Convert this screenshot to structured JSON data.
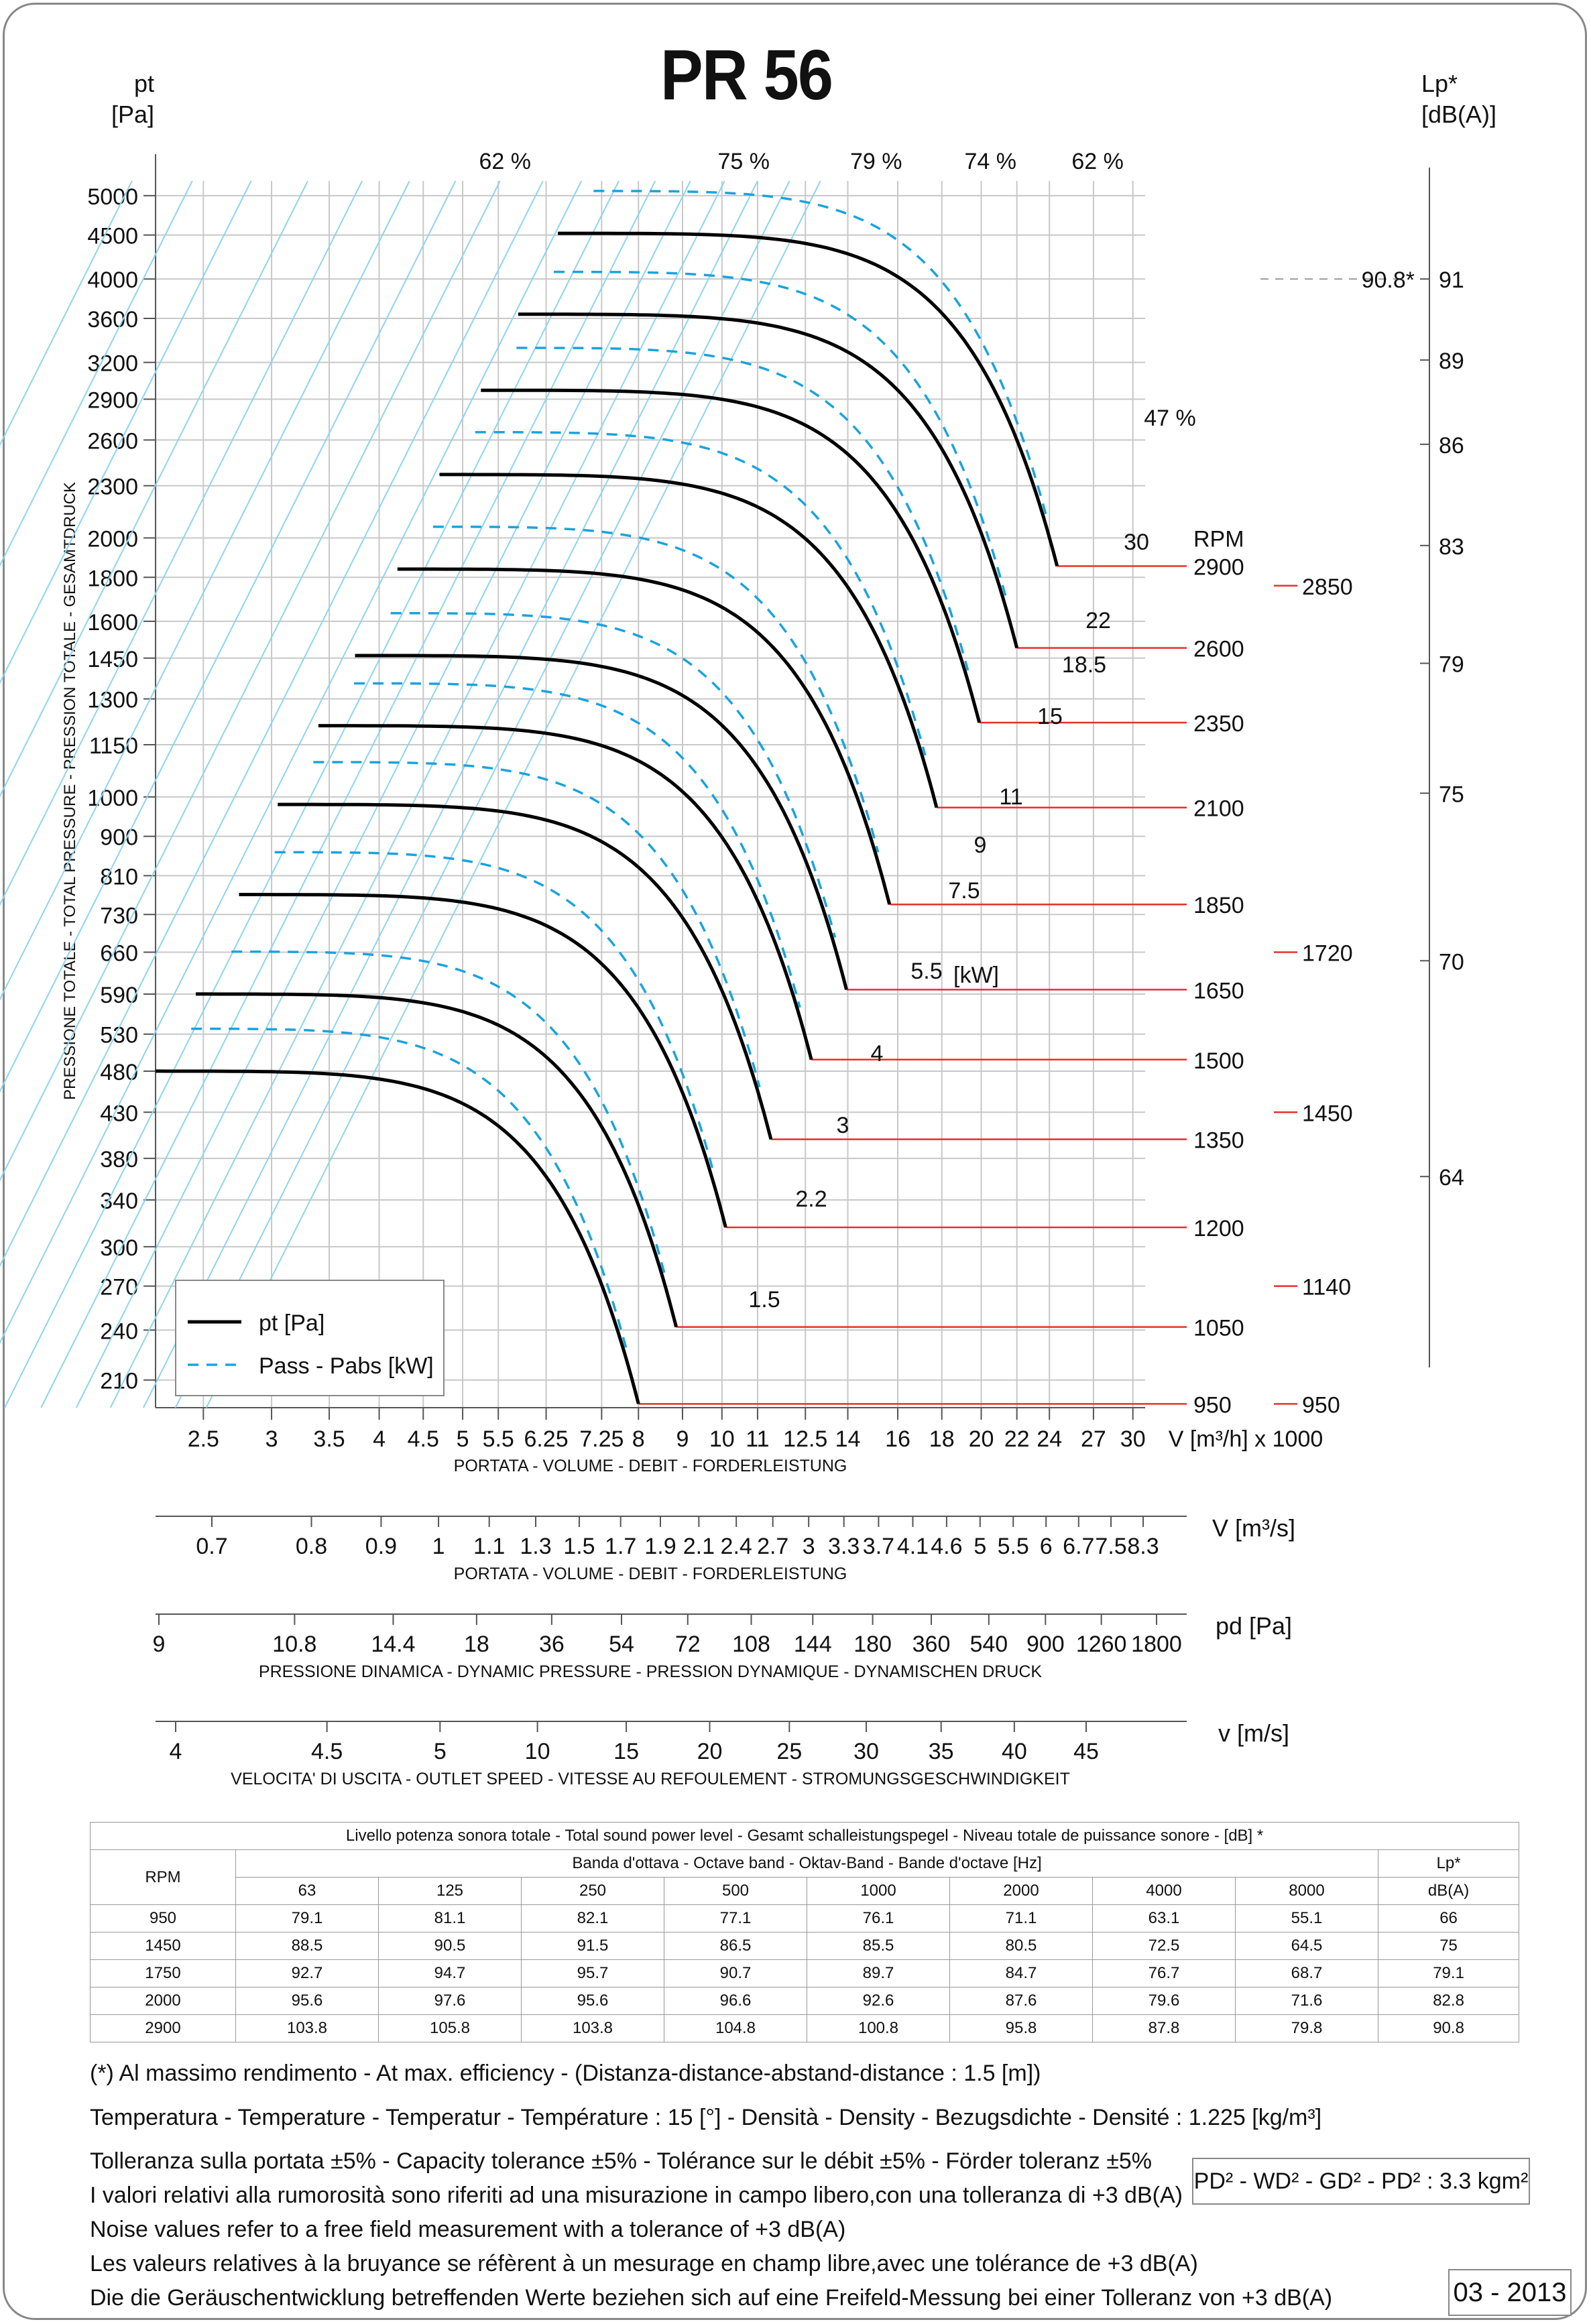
{
  "title": "PR 56",
  "axes": {
    "y_left_label": "pt",
    "y_left_unit": "[Pa]",
    "y_left_side": "PRESSIONE TOTALE - TOTAL PRESSURE - PRESSION TOTALE - GESAMTDRUCK",
    "y_right_label": "Lp*",
    "y_right_unit": "[dB(A)]",
    "x_unit": "V [m³/h]  x 1000",
    "x_caption": "PORTATA - VOLUME - DEBIT - FORDERLEISTUNG",
    "x2_unit": "V  [m³/s]",
    "x2_caption": "PORTATA - VOLUME - DEBIT - FORDERLEISTUNG",
    "x3_unit": "pd  [Pa]",
    "x3_caption": "PRESSIONE DINAMICA - DYNAMIC PRESSURE - PRESSION DYNAMIQUE - DYNAMISCHEN DRUCK",
    "x4_unit": "v  [m/s]",
    "x4_caption": "VELOCITA' DI USCITA - OUTLET SPEED - VITESSE AU REFOULEMENT - STROMUNGSGESCHWINDIGKEIT"
  },
  "legend": {
    "pt": "pt [Pa]",
    "pass": "Pass - Pabs [kW]"
  },
  "rpm_header": "RPM",
  "kw_unit": "[kW]",
  "lp_marker": "90.8*",
  "colors": {
    "curve": "#000000",
    "power": "#1aa3dd",
    "rpm": "#e8302a",
    "grid": "#c8c8c8",
    "system": "#8fd3f0"
  },
  "chart_data": {
    "type": "line",
    "title": "PR 56",
    "xscale": "log",
    "yscale": "log",
    "xlim": [
      2.2,
      31
    ],
    "ylim": [
      195,
      5200
    ],
    "y_ticks": [
      5000,
      4500,
      4000,
      3600,
      3200,
      2900,
      2600,
      2300,
      2000,
      1800,
      1600,
      1450,
      1300,
      1150,
      1000,
      900,
      810,
      730,
      660,
      590,
      530,
      480,
      430,
      380,
      340,
      300,
      270,
      240,
      210
    ],
    "x_ticks": [
      "2.5",
      "3",
      "3.5",
      "4",
      "4.5",
      "5",
      "5.5",
      "6.25",
      "7.25",
      "8",
      "9",
      "10",
      "11",
      "12.5",
      "14",
      "16",
      "18",
      "20",
      "22",
      "24",
      "27",
      "30"
    ],
    "x_tick_values": [
      2.5,
      3,
      3.5,
      4,
      4.5,
      5,
      5.5,
      6.25,
      7.25,
      8,
      9,
      10,
      11,
      12.5,
      14,
      16,
      18,
      20,
      22,
      24,
      27,
      30
    ],
    "ls_ticks": [
      {
        "label": "91",
        "y": 4000
      },
      {
        "label": "89",
        "y": 3220
      },
      {
        "label": "86",
        "y": 2570
      },
      {
        "label": "83",
        "y": 1960
      },
      {
        "label": "79",
        "y": 1430
      },
      {
        "label": "75",
        "y": 1010
      },
      {
        "label": "70",
        "y": 645
      },
      {
        "label": "64",
        "y": 362
      }
    ],
    "efficiency_labels": [
      {
        "label": "62 %",
        "x": 5.6
      },
      {
        "label": "75 %",
        "x": 10.6
      },
      {
        "label": "79 %",
        "x": 15.1
      },
      {
        "label": "74 %",
        "x": 20.5
      },
      {
        "label": "62 %",
        "x": 27.3
      }
    ],
    "efficiency_47": "47 %",
    "rpm_curves": [
      {
        "rpm": "950",
        "y": 480,
        "x_end": 8.0
      },
      {
        "rpm": "1050",
        "y": 590,
        "x_end": 8.85
      },
      {
        "rpm": "1200",
        "y": 770,
        "x_end": 10.1
      },
      {
        "rpm": "1350",
        "y": 980,
        "x_end": 11.4
      },
      {
        "rpm": "1500",
        "y": 1210,
        "x_end": 12.7
      },
      {
        "rpm": "1650",
        "y": 1460,
        "x_end": 13.95
      },
      {
        "rpm": "1850",
        "y": 1840,
        "x_end": 15.65
      },
      {
        "rpm": "2100",
        "y": 2370,
        "x_end": 17.75
      },
      {
        "rpm": "2350",
        "y": 2970,
        "x_end": 19.9
      },
      {
        "rpm": "2600",
        "y": 3640,
        "x_end": 22.0
      },
      {
        "rpm": "2900",
        "y": 4520,
        "x_end": 24.5
      }
    ],
    "end_pressures": [
      197,
      242,
      316,
      400,
      495,
      597,
      750,
      972,
      1220,
      1490,
      1855
    ],
    "power_labels": [
      "1.5",
      "2.2",
      "3",
      "4",
      "5.5",
      "7.5",
      "9",
      "11",
      "15",
      "18.5",
      "22",
      "30"
    ],
    "rpm_right_extra": [
      "950",
      "1140",
      "1450",
      "1720",
      "2850"
    ]
  },
  "table": {
    "title": "Livello potenza sonora totale - Total sound power level - Gesamt schalleistungspegel - Niveau totale de puissance sonore - [dB]   *",
    "band_title": "Banda d'ottava - Octave band - Oktav-Band - Bande d'octave [Hz]",
    "rpm_header": "RPM",
    "lp_header": "Lp*",
    "lp_unit": "dB(A)",
    "bands": [
      "63",
      "125",
      "250",
      "500",
      "1000",
      "2000",
      "4000",
      "8000"
    ],
    "rows": [
      [
        "950",
        "79.1",
        "81.1",
        "82.1",
        "77.1",
        "76.1",
        "71.1",
        "63.1",
        "55.1",
        "66"
      ],
      [
        "1450",
        "88.5",
        "90.5",
        "91.5",
        "86.5",
        "85.5",
        "80.5",
        "72.5",
        "64.5",
        "75"
      ],
      [
        "1750",
        "92.7",
        "94.7",
        "95.7",
        "90.7",
        "89.7",
        "84.7",
        "76.7",
        "68.7",
        "79.1"
      ],
      [
        "2000",
        "95.6",
        "97.6",
        "95.6",
        "96.6",
        "92.6",
        "87.6",
        "79.6",
        "71.6",
        "82.8"
      ],
      [
        "2900",
        "103.8",
        "105.8",
        "103.8",
        "104.8",
        "100.8",
        "95.8",
        "87.8",
        "79.8",
        "90.8"
      ]
    ]
  },
  "notes": {
    "n1": "(*) Al massimo rendimento - At max. efficiency - (Distanza-distance-abstand-distance : 1.5 [m])",
    "n2": "Temperatura - Temperature - Temperatur - Température : 15 [°]  -  Densità - Density - Bezugsdichte - Densité : 1.225 [kg/m³]",
    "n3": "Tolleranza sulla portata  ±5% - Capacity tolerance ±5% - Tolérance sur le débit ±5% - Förder toleranz ±5%",
    "n4": "I valori relativi alla rumorosità sono riferiti ad una misurazione in campo libero,con una tolleranza di +3 dB(A)",
    "n5": "Noise values refer to a free field measurement with a tolerance of +3 dB(A)",
    "n6": "Les valeurs relatives à la bruyance se réfèrent à un mesurage en champ libre,avec une tolérance de +3 dB(A)",
    "n7": "Die die Geräuschentwicklung betreffenden Werte beziehen sich auf eine Freifeld-Messung bei einer Tolleranz von +3 dB(A)",
    "pd2": "PD² -  WD² - GD² -  PD²  :  3.3 kgm²",
    "date": "03 - 2013"
  },
  "scales": {
    "m3s": [
      "0.7",
      "0.8",
      "0.9",
      "1",
      "1.1",
      "1.3",
      "1.5",
      "1.7",
      "1.9",
      "2.1",
      "2.4",
      "2.7",
      "3",
      "3.3",
      "3.7",
      "4.1",
      "4.6",
      "5",
      "5.5",
      "6",
      "6.7",
      "7.5",
      "8.3"
    ],
    "pd": [
      "9",
      "10.8",
      "14.4",
      "18",
      "36",
      "54",
      "72",
      "108",
      "144",
      "180",
      "360",
      "540",
      "900",
      "1260",
      "1800"
    ],
    "v": [
      "4",
      "4.5",
      "5",
      "10",
      "15",
      "20",
      "25",
      "30",
      "35",
      "40",
      "45"
    ]
  }
}
